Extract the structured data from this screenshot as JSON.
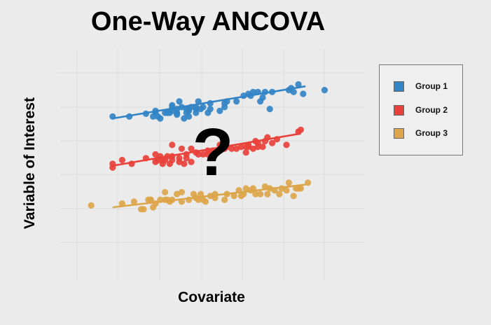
{
  "title": "One-Way ANCOVA",
  "annotation": "?",
  "chart_data": {
    "type": "scatter",
    "title": "One-Way ANCOVA",
    "xlabel": "Covariate",
    "ylabel": "Variable of Interest",
    "xlim": [
      0,
      100
    ],
    "ylim": [
      0,
      100
    ],
    "grid": true,
    "legend_position": "right",
    "series": [
      {
        "name": "Group 1",
        "color": "#3384c6",
        "trend_line": [
          [
            7,
            67
          ],
          [
            88,
            84
          ]
        ],
        "points": [
          [
            7,
            68
          ],
          [
            14,
            68
          ],
          [
            21,
            69.5
          ],
          [
            24,
            68
          ],
          [
            25,
            70
          ],
          [
            25,
            71
          ],
          [
            26,
            68
          ],
          [
            27,
            67
          ],
          [
            29,
            70
          ],
          [
            30,
            70
          ],
          [
            31,
            70
          ],
          [
            32,
            71
          ],
          [
            32,
            74
          ],
          [
            32,
            73
          ],
          [
            34,
            69
          ],
          [
            34,
            70
          ],
          [
            34,
            72
          ],
          [
            35,
            76
          ],
          [
            36,
            73
          ],
          [
            37,
            67
          ],
          [
            38,
            70
          ],
          [
            38,
            72
          ],
          [
            39,
            68
          ],
          [
            39,
            71
          ],
          [
            39,
            72
          ],
          [
            40,
            73
          ],
          [
            42,
            70
          ],
          [
            42,
            72
          ],
          [
            42,
            73
          ],
          [
            43,
            76
          ],
          [
            44,
            72
          ],
          [
            45,
            73
          ],
          [
            47,
            70
          ],
          [
            48,
            72
          ],
          [
            48,
            75
          ],
          [
            52,
            71
          ],
          [
            54,
            73
          ],
          [
            54,
            75
          ],
          [
            55,
            76
          ],
          [
            59,
            76
          ],
          [
            62,
            79
          ],
          [
            64,
            80
          ],
          [
            65,
            79
          ],
          [
            66,
            81
          ],
          [
            68,
            81
          ],
          [
            69,
            76
          ],
          [
            70,
            78
          ],
          [
            71,
            81
          ],
          [
            73,
            72
          ],
          [
            74,
            81
          ],
          [
            81,
            82
          ],
          [
            82,
            83
          ],
          [
            83,
            81
          ],
          [
            85,
            85
          ],
          [
            87,
            80
          ],
          [
            96,
            82
          ]
        ]
      },
      {
        "name": "Group 2",
        "color": "#e8413a",
        "trend_line": [
          [
            7,
            42
          ],
          [
            86,
            59
          ]
        ],
        "points": [
          [
            7,
            43
          ],
          [
            7,
            41
          ],
          [
            11,
            45
          ],
          [
            15,
            43
          ],
          [
            21,
            46
          ],
          [
            25,
            44
          ],
          [
            25,
            48
          ],
          [
            26,
            45
          ],
          [
            27,
            47
          ],
          [
            28,
            45
          ],
          [
            28,
            43
          ],
          [
            29,
            45
          ],
          [
            30,
            47
          ],
          [
            31,
            43
          ],
          [
            32,
            45
          ],
          [
            32,
            47
          ],
          [
            32,
            53
          ],
          [
            35,
            44
          ],
          [
            35,
            46
          ],
          [
            36,
            51
          ],
          [
            37,
            43
          ],
          [
            38,
            46
          ],
          [
            38,
            48
          ],
          [
            40,
            44
          ],
          [
            40,
            51
          ],
          [
            42,
            49
          ],
          [
            43,
            48
          ],
          [
            45,
            48
          ],
          [
            47,
            48
          ],
          [
            47,
            50
          ],
          [
            49,
            50
          ],
          [
            51,
            50
          ],
          [
            52,
            53
          ],
          [
            54,
            51
          ],
          [
            55,
            52
          ],
          [
            57,
            51
          ],
          [
            59,
            51
          ],
          [
            61,
            52
          ],
          [
            63,
            49
          ],
          [
            63,
            52
          ],
          [
            64,
            52
          ],
          [
            64,
            53
          ],
          [
            66,
            51
          ],
          [
            67,
            55
          ],
          [
            68,
            52
          ],
          [
            68,
            54
          ],
          [
            70,
            52
          ],
          [
            71,
            55
          ],
          [
            72,
            57
          ],
          [
            74,
            54
          ],
          [
            76,
            56
          ],
          [
            80,
            53
          ],
          [
            85,
            60
          ],
          [
            86,
            61
          ]
        ]
      },
      {
        "name": "Group 3",
        "color": "#dca54a",
        "trend_line": [
          [
            7,
            20
          ],
          [
            88,
            32
          ]
        ],
        "points": [
          [
            -2,
            21
          ],
          [
            11,
            22
          ],
          [
            16,
            23
          ],
          [
            19,
            19
          ],
          [
            20,
            19
          ],
          [
            22,
            24
          ],
          [
            23,
            24
          ],
          [
            23,
            24
          ],
          [
            24,
            20
          ],
          [
            25,
            22
          ],
          [
            27,
            24
          ],
          [
            29,
            28
          ],
          [
            29,
            24
          ],
          [
            30,
            24
          ],
          [
            31,
            23
          ],
          [
            32,
            24
          ],
          [
            34,
            27
          ],
          [
            36,
            28
          ],
          [
            36,
            23
          ],
          [
            39,
            24
          ],
          [
            41,
            27
          ],
          [
            42,
            25
          ],
          [
            43,
            24
          ],
          [
            44,
            27
          ],
          [
            45,
            24
          ],
          [
            46,
            23
          ],
          [
            48,
            26
          ],
          [
            50,
            27
          ],
          [
            50,
            25
          ],
          [
            54,
            24
          ],
          [
            55,
            27
          ],
          [
            58,
            26
          ],
          [
            60,
            29
          ],
          [
            61,
            26
          ],
          [
            62,
            27
          ],
          [
            63,
            30
          ],
          [
            65,
            29
          ],
          [
            66,
            30
          ],
          [
            67,
            27
          ],
          [
            69,
            27
          ],
          [
            71,
            31
          ],
          [
            72,
            27
          ],
          [
            73,
            30
          ],
          [
            75,
            29
          ],
          [
            77,
            27
          ],
          [
            78,
            30
          ],
          [
            80,
            29
          ],
          [
            81,
            33
          ],
          [
            83,
            26
          ],
          [
            84,
            30
          ],
          [
            85,
            30
          ],
          [
            86,
            30
          ],
          [
            89,
            33
          ]
        ]
      }
    ]
  }
}
